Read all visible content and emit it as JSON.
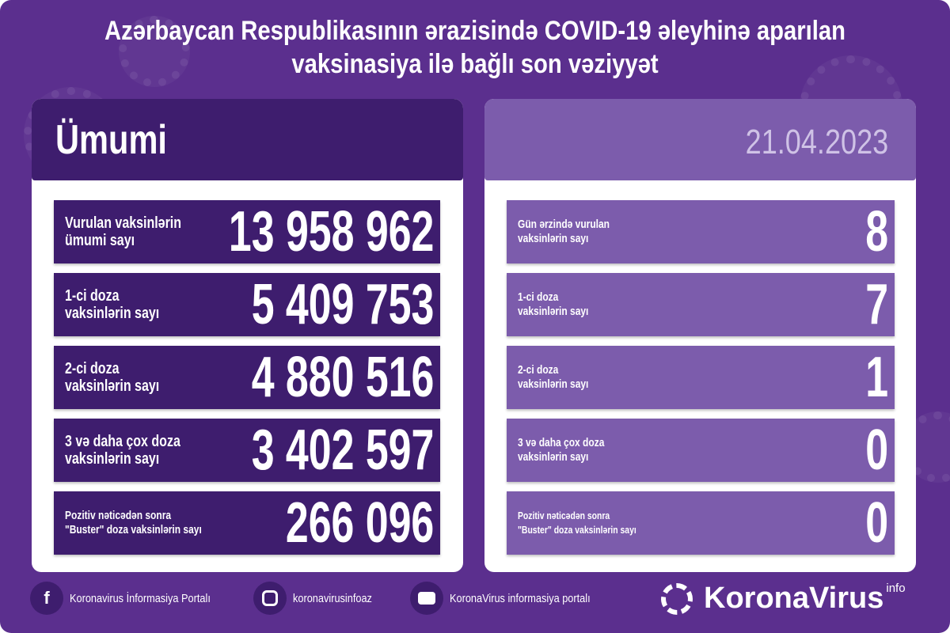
{
  "title_line1": "Azərbaycan Respublikasının ərazisində COVID-19 əleyhinə aparılan",
  "title_line2": "vaksinasiya ilə bağlı son vəziyyət",
  "left": {
    "header": "Ümumi",
    "rows": [
      {
        "label": "Vurulan vaksinlərin\nümumi sayı",
        "value": "13 958 962"
      },
      {
        "label": "1-ci doza\nvaksinlərin sayı",
        "value": "5 409 753"
      },
      {
        "label": "2-ci doza\nvaksinlərin sayı",
        "value": "4 880 516"
      },
      {
        "label": "3 və daha çox doza\nvaksinlərin sayı",
        "value": "3 402 597"
      },
      {
        "label": "Pozitiv nəticədən sonra\n\"Buster\" doza vaksinlərin sayı",
        "value": "266 096"
      }
    ]
  },
  "right": {
    "header": "21.04.2023",
    "rows": [
      {
        "label": "Gün ərzində vurulan\nvaksinlərin sayı",
        "value": "8"
      },
      {
        "label": "1-ci doza\nvaksinlərin sayı",
        "value": "7"
      },
      {
        "label": "2-ci doza\nvaksinlərin sayı",
        "value": "1"
      },
      {
        "label": "3 və daha çox doza\nvaksinlərin sayı",
        "value": "0"
      },
      {
        "label": "Pozitiv nəticədən sonra\n\"Buster\" doza vaksinlərin sayı",
        "value": "0"
      }
    ]
  },
  "footer": {
    "facebook": "Koronavirus İnformasiya Portalı",
    "instagram": "koronavirusinfoaz",
    "youtube": "KoronaVirus informasiya portalı",
    "logo": "KoronaVirus",
    "logo_sup": "info"
  },
  "colors": {
    "background": "#5b2f8e",
    "dark": "#3e1d6e",
    "light": "#7c5cac"
  }
}
